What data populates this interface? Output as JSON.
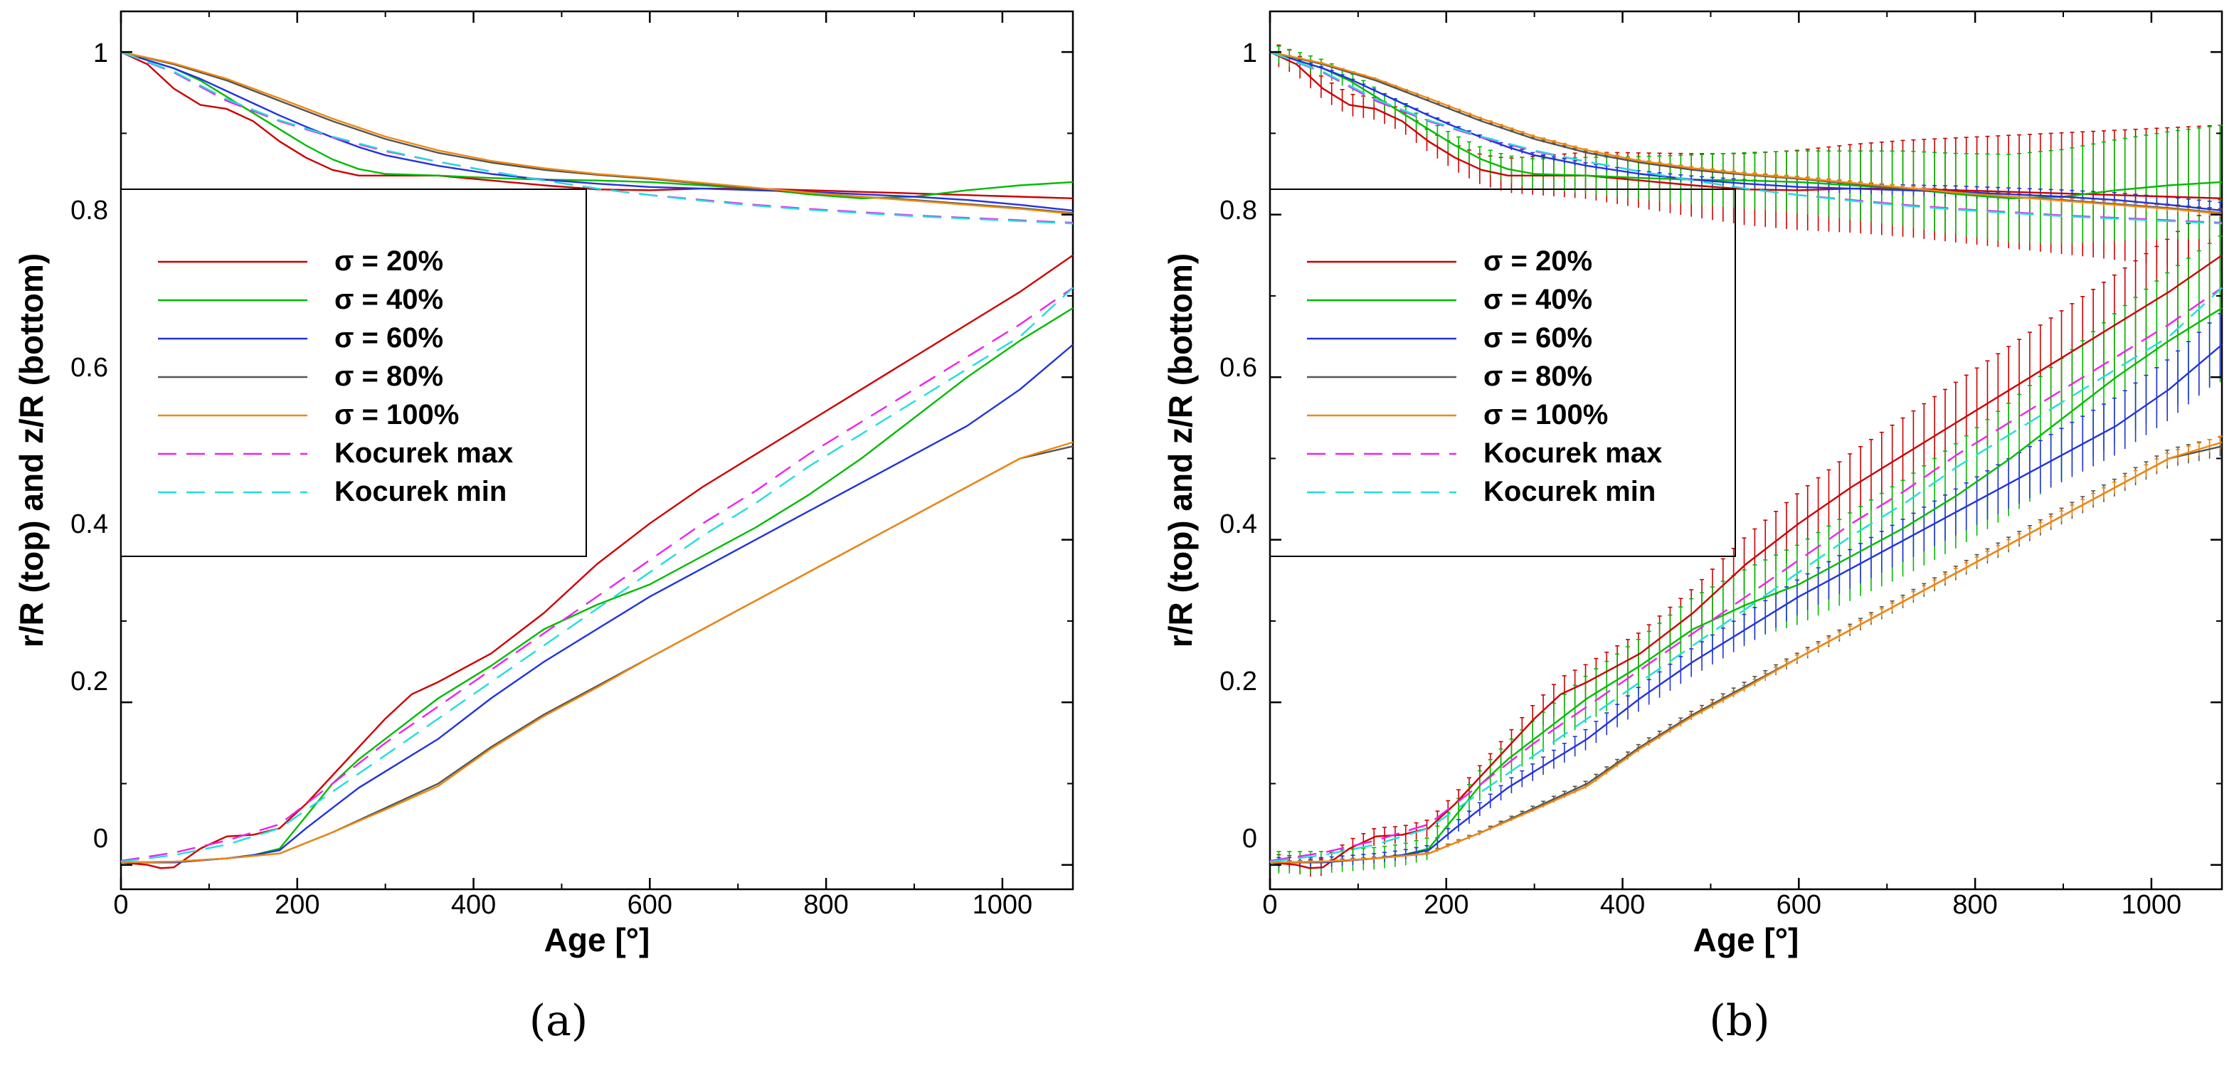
{
  "chart_data": [
    {
      "panel": "(a)",
      "type": "line",
      "xlabel": "Age [°]",
      "ylabel": "r/R (top) and z/R (bottom)",
      "xlim": [
        0,
        1080
      ],
      "ylim": [
        -0.03,
        1.05
      ],
      "xticks": [
        0,
        200,
        400,
        600,
        800,
        1000
      ],
      "yticks": [
        0,
        0.2,
        0.4,
        0.6,
        0.8,
        1
      ],
      "error_bars": false,
      "legend_position": "left",
      "series": [
        {
          "name": "σ = 20%",
          "color": "#cc0000",
          "dash": "solid",
          "top": {
            "x": [
              0,
              30,
              60,
              90,
              120,
              150,
              180,
              210,
              240,
              270,
              300,
              360,
              420,
              480,
              540,
              600,
              660,
              720,
              780,
              840,
              900,
              960,
              1020,
              1080
            ],
            "y": [
              1.0,
              0.985,
              0.955,
              0.935,
              0.93,
              0.915,
              0.89,
              0.87,
              0.855,
              0.848,
              0.848,
              0.848,
              0.842,
              0.836,
              0.831,
              0.83,
              0.832,
              0.832,
              0.83,
              0.828,
              0.826,
              0.824,
              0.822,
              0.82
            ]
          },
          "bottom": {
            "x": [
              0,
              30,
              45,
              60,
              90,
              120,
              150,
              180,
              210,
              240,
              270,
              300,
              330,
              360,
              420,
              480,
              540,
              600,
              660,
              720,
              780,
              840,
              900,
              960,
              1020,
              1080
            ],
            "y": [
              0.003,
              0.0,
              -0.004,
              -0.003,
              0.02,
              0.035,
              0.037,
              0.045,
              0.075,
              0.11,
              0.145,
              0.18,
              0.21,
              0.225,
              0.26,
              0.31,
              0.37,
              0.42,
              0.465,
              0.505,
              0.545,
              0.585,
              0.625,
              0.665,
              0.705,
              0.75
            ]
          }
        },
        {
          "name": "σ = 40%",
          "color": "#00bb00",
          "dash": "solid",
          "top": {
            "x": [
              0,
              30,
              60,
              90,
              120,
              150,
              180,
              210,
              240,
              270,
              300,
              360,
              420,
              480,
              540,
              600,
              660,
              720,
              780,
              840,
              900,
              960,
              1020,
              1080
            ],
            "y": [
              1.0,
              0.99,
              0.98,
              0.965,
              0.945,
              0.925,
              0.905,
              0.885,
              0.868,
              0.856,
              0.85,
              0.848,
              0.845,
              0.843,
              0.842,
              0.84,
              0.836,
              0.832,
              0.825,
              0.82,
              0.822,
              0.83,
              0.836,
              0.84
            ]
          },
          "bottom": {
            "x": [
              0,
              60,
              120,
              150,
              180,
              210,
              240,
              270,
              300,
              330,
              360,
              420,
              480,
              540,
              600,
              660,
              720,
              780,
              840,
              900,
              960,
              1020,
              1080
            ],
            "y": [
              0.003,
              0.003,
              0.008,
              0.012,
              0.02,
              0.06,
              0.1,
              0.13,
              0.155,
              0.18,
              0.205,
              0.245,
              0.29,
              0.32,
              0.345,
              0.38,
              0.415,
              0.455,
              0.5,
              0.55,
              0.6,
              0.645,
              0.685
            ]
          }
        },
        {
          "name": "σ = 60%",
          "color": "#2233dd",
          "dash": "solid",
          "top": {
            "x": [
              0,
              30,
              60,
              90,
              120,
              150,
              180,
              210,
              240,
              270,
              300,
              360,
              420,
              480,
              540,
              600,
              660,
              720,
              780,
              840,
              900,
              960,
              1020,
              1080
            ],
            "y": [
              1.0,
              0.99,
              0.98,
              0.967,
              0.952,
              0.937,
              0.922,
              0.908,
              0.895,
              0.883,
              0.873,
              0.86,
              0.85,
              0.843,
              0.838,
              0.834,
              0.832,
              0.83,
              0.828,
              0.825,
              0.822,
              0.818,
              0.812,
              0.805
            ]
          },
          "bottom": {
            "x": [
              0,
              60,
              120,
              150,
              180,
              210,
              240,
              270,
              300,
              330,
              360,
              420,
              480,
              540,
              600,
              660,
              720,
              780,
              840,
              900,
              960,
              1020,
              1080
            ],
            "y": [
              0.003,
              0.003,
              0.008,
              0.012,
              0.018,
              0.045,
              0.07,
              0.095,
              0.115,
              0.135,
              0.155,
              0.205,
              0.25,
              0.29,
              0.33,
              0.365,
              0.4,
              0.435,
              0.47,
              0.505,
              0.54,
              0.585,
              0.64
            ]
          }
        },
        {
          "name": "σ = 80%",
          "color": "#555555",
          "dash": "solid",
          "top": {
            "x": [
              0,
              60,
              120,
              180,
              240,
              300,
              360,
              420,
              480,
              540,
              600,
              660,
              720,
              780,
              840,
              900,
              960,
              1020,
              1080
            ],
            "y": [
              1.0,
              0.985,
              0.965,
              0.94,
              0.915,
              0.893,
              0.876,
              0.864,
              0.855,
              0.849,
              0.844,
              0.838,
              0.832,
              0.827,
              0.822,
              0.818,
              0.813,
              0.808,
              0.802
            ]
          },
          "bottom": {
            "x": [
              0,
              60,
              120,
              180,
              240,
              300,
              360,
              420,
              480,
              540,
              600,
              660,
              720,
              780,
              840,
              900,
              960,
              1020,
              1080
            ],
            "y": [
              0.003,
              0.004,
              0.008,
              0.014,
              0.04,
              0.07,
              0.1,
              0.145,
              0.185,
              0.22,
              0.255,
              0.29,
              0.325,
              0.36,
              0.395,
              0.43,
              0.465,
              0.5,
              0.515
            ]
          }
        },
        {
          "name": "σ = 100%",
          "color": "#ee8811",
          "dash": "solid",
          "top": {
            "x": [
              0,
              60,
              120,
              180,
              240,
              300,
              360,
              420,
              480,
              540,
              600,
              660,
              720,
              780,
              840,
              900,
              960,
              1020,
              1080
            ],
            "y": [
              1.0,
              0.986,
              0.967,
              0.943,
              0.918,
              0.896,
              0.879,
              0.866,
              0.857,
              0.85,
              0.845,
              0.839,
              0.833,
              0.827,
              0.822,
              0.817,
              0.812,
              0.807,
              0.801
            ]
          },
          "bottom": {
            "x": [
              0,
              60,
              120,
              180,
              240,
              300,
              360,
              420,
              480,
              540,
              600,
              660,
              720,
              780,
              840,
              900,
              960,
              1020,
              1080
            ],
            "y": [
              0.003,
              0.004,
              0.008,
              0.014,
              0.04,
              0.068,
              0.097,
              0.143,
              0.183,
              0.218,
              0.255,
              0.29,
              0.325,
              0.36,
              0.395,
              0.43,
              0.465,
              0.5,
              0.52
            ]
          }
        },
        {
          "name": "Kocurek max",
          "color": "#ee22ee",
          "dash": "dashed",
          "top": {
            "x": [
              0,
              60,
              120,
              180,
              240,
              300,
              360,
              420,
              480,
              540,
              600,
              660,
              720,
              780,
              840,
              900,
              960,
              1020,
              1080
            ],
            "y": [
              1.0,
              0.975,
              0.94,
              0.915,
              0.895,
              0.878,
              0.865,
              0.853,
              0.842,
              0.832,
              0.824,
              0.818,
              0.812,
              0.807,
              0.803,
              0.799,
              0.796,
              0.793,
              0.79
            ]
          },
          "bottom": {
            "x": [
              0,
              60,
              120,
              180,
              240,
              300,
              360,
              420,
              480,
              540,
              600,
              660,
              720,
              780,
              840,
              900,
              960,
              1020,
              1080
            ],
            "y": [
              0.005,
              0.015,
              0.03,
              0.05,
              0.1,
              0.15,
              0.195,
              0.24,
              0.285,
              0.33,
              0.375,
              0.42,
              0.46,
              0.505,
              0.545,
              0.585,
              0.625,
              0.665,
              0.71
            ]
          }
        },
        {
          "name": "Kocurek min",
          "color": "#22dddd",
          "dash": "dashed",
          "top": {
            "x": [
              0,
              60,
              120,
              180,
              240,
              300,
              360,
              420,
              480,
              540,
              600,
              660,
              720,
              780,
              840,
              900,
              960,
              1020,
              1080
            ],
            "y": [
              1.0,
              0.976,
              0.942,
              0.916,
              0.896,
              0.879,
              0.865,
              0.853,
              0.842,
              0.832,
              0.824,
              0.817,
              0.811,
              0.806,
              0.802,
              0.798,
              0.795,
              0.792,
              0.789
            ]
          },
          "bottom": {
            "x": [
              0,
              60,
              120,
              180,
              240,
              300,
              360,
              420,
              480,
              540,
              600,
              660,
              720,
              780,
              840,
              900,
              960,
              1020,
              1080
            ],
            "y": [
              0.004,
              0.012,
              0.025,
              0.045,
              0.09,
              0.135,
              0.18,
              0.225,
              0.27,
              0.315,
              0.36,
              0.405,
              0.445,
              0.49,
              0.53,
              0.57,
              0.61,
              0.65,
              0.71
            ]
          }
        }
      ]
    },
    {
      "panel": "(b)",
      "type": "line",
      "xlabel": "Age [°]",
      "ylabel": "r/R (top) and z/R (bottom)",
      "xlim": [
        0,
        1080
      ],
      "ylim": [
        -0.03,
        1.05
      ],
      "xticks": [
        0,
        200,
        400,
        600,
        800,
        1000
      ],
      "yticks": [
        0,
        0.2,
        0.4,
        0.6,
        0.8,
        1
      ],
      "error_bars": true,
      "error_bar_spacing": 12,
      "error_spread_max": {
        "σ = 20%": {
          "top": 0.09,
          "bottom": 0.07
        },
        "σ = 40%": {
          "top": 0.07,
          "bottom": 0.09
        },
        "σ = 60%": {
          "top": 0.01,
          "bottom": 0.04
        },
        "σ = 80%": {
          "top": 0.005,
          "bottom": 0.012
        },
        "σ = 100%": {
          "top": 0.004,
          "bottom": 0.008
        }
      },
      "legend_position": "left",
      "series_same_as_panel": "(a)"
    }
  ],
  "panels": [
    {
      "caption": "(a)",
      "xlabel": "Age [°]",
      "ylabel": "r/R (top) and z/R (bottom)",
      "xtick_labels": [
        "0",
        "200",
        "400",
        "600",
        "800",
        "1000"
      ],
      "ytick_labels": [
        "0",
        "0.2",
        "0.4",
        "0.6",
        "0.8",
        "1"
      ],
      "legend": [
        "σ = 20%",
        "σ = 40%",
        "σ = 60%",
        "σ = 80%",
        "σ = 100%",
        "Kocurek max",
        "Kocurek min"
      ]
    },
    {
      "caption": "(b)",
      "xlabel": "Age [°]",
      "ylabel": "r/R (top) and z/R (bottom)",
      "xtick_labels": [
        "0",
        "200",
        "400",
        "600",
        "800",
        "1000"
      ],
      "ytick_labels": [
        "0",
        "0.2",
        "0.4",
        "0.6",
        "0.8",
        "1"
      ],
      "legend": [
        "σ = 20%",
        "σ = 40%",
        "σ = 60%",
        "σ = 80%",
        "σ = 100%",
        "Kocurek max",
        "Kocurek min"
      ]
    }
  ]
}
